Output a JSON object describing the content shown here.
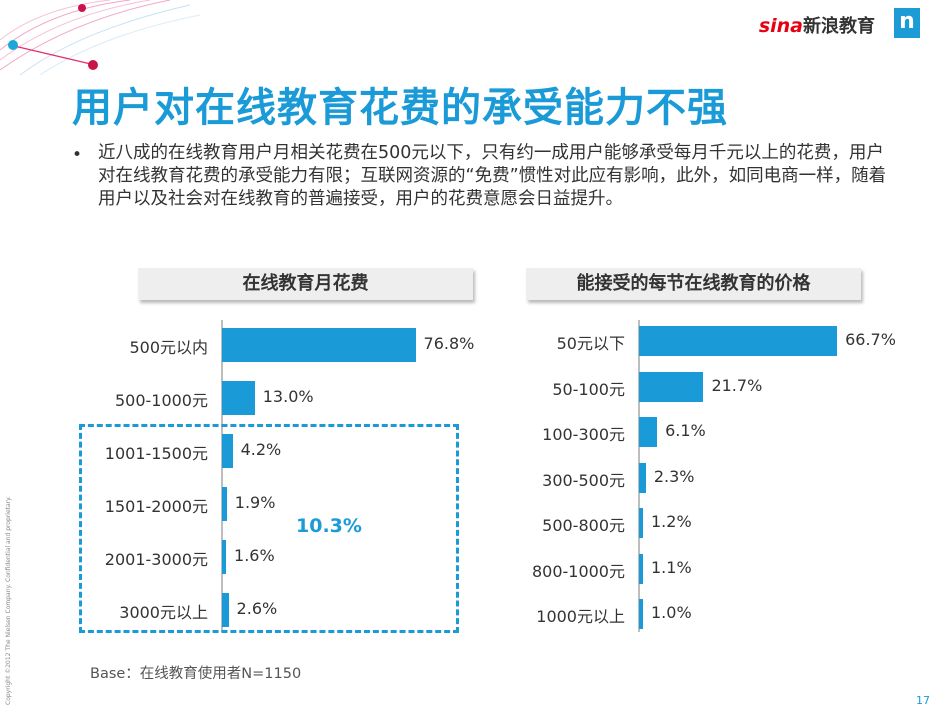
{
  "header": {
    "logo_text": "新浪教育",
    "logo_brand": "sina",
    "n_logo": "n",
    "title": "用户对在线教育花费的承受能力不强"
  },
  "body": {
    "bullet": "•",
    "text": "近八成的在线教育用户月相关花费在500元以下，只有约一成用户能够承受每月千元以上的花费，用户对在线教育花费的承受能力有限；互联网资源的“免费”惯性对此应有影响，此外，如同电商一样，随着用户以及社会对在线教育的普遍接受，用户的花费意愿会日益提升。"
  },
  "chart_data": [
    {
      "type": "bar",
      "orientation": "horizontal",
      "title": "在线教育月花费",
      "categories": [
        "500元以内",
        "500-1000元",
        "1001-1500元",
        "1501-2000元",
        "2001-3000元",
        "3000元以上"
      ],
      "values": [
        76.8,
        13.0,
        4.2,
        1.9,
        1.6,
        2.6
      ],
      "labels": [
        "76.8%",
        "13.0%",
        "4.2%",
        "1.9%",
        "1.6%",
        "2.6%"
      ],
      "annotation": "10.3%",
      "color": "#1a9bd7"
    },
    {
      "type": "bar",
      "orientation": "horizontal",
      "title": "能接受的每节在线教育的价格",
      "categories": [
        "50元以下",
        "50-100元",
        "100-300元",
        "300-500元",
        "500-800元",
        "800-1000元",
        "1000元以上"
      ],
      "values": [
        66.7,
        21.7,
        6.1,
        2.3,
        1.2,
        1.1,
        1.0
      ],
      "labels": [
        "66.7%",
        "21.7%",
        "6.1%",
        "2.3%",
        "1.2%",
        "1.1%",
        "1.0%"
      ],
      "color": "#1a9bd7"
    }
  ],
  "footer": {
    "base": "Base：在线教育使用者N=1150",
    "page": "17",
    "copyright": "Copyright ©2012 The Nielsen Company. Confidential and proprietary."
  },
  "colors": {
    "accent": "#1a9bd7",
    "sina_red": "#e60012"
  }
}
